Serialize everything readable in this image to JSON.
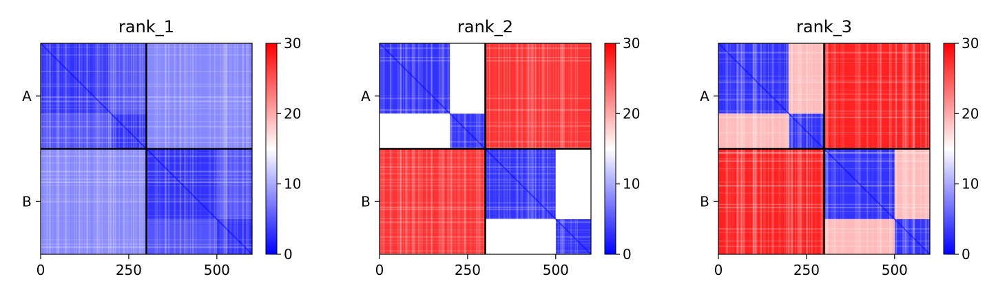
{
  "chart_data": [
    {
      "type": "heatmap",
      "title": "rank_1",
      "x_ticks": [
        0,
        250,
        500
      ],
      "xlim": [
        0,
        600
      ],
      "chain_boundary": 300,
      "y_tick_labels": [
        "A",
        "B"
      ],
      "colorbar": {
        "min": 0,
        "max": 30,
        "ticks": [
          0,
          10,
          20,
          30
        ],
        "colors": [
          "#0000ff",
          "#ffffff",
          "#ff0000"
        ]
      },
      "blocks": {
        "intra_A": 3,
        "intra_B": 3,
        "inter": 8,
        "subdomain_split": 200,
        "subdomain_inter": 5
      }
    },
    {
      "type": "heatmap",
      "title": "rank_2",
      "x_ticks": [
        0,
        250,
        500
      ],
      "xlim": [
        0,
        600
      ],
      "chain_boundary": 300,
      "y_tick_labels": [
        "A",
        "B"
      ],
      "colorbar": {
        "min": 0,
        "max": 30,
        "ticks": [
          0,
          10,
          20,
          30
        ],
        "colors": [
          "#0000ff",
          "#ffffff",
          "#ff0000"
        ]
      },
      "blocks": {
        "intra_A": 3,
        "intra_B": 3,
        "inter": 27,
        "subdomain_split": 200,
        "subdomain_inter": 15
      }
    },
    {
      "type": "heatmap",
      "title": "rank_3",
      "x_ticks": [
        0,
        250,
        500
      ],
      "xlim": [
        0,
        600
      ],
      "chain_boundary": 300,
      "y_tick_labels": [
        "A",
        "B"
      ],
      "colorbar": {
        "min": 0,
        "max": 30,
        "ticks": [
          0,
          10,
          20,
          30
        ],
        "colors": [
          "#0000ff",
          "#ffffff",
          "#ff0000"
        ]
      },
      "blocks": {
        "intra_A": 3,
        "intra_B": 3,
        "inter": 28,
        "subdomain_split": 200,
        "subdomain_inter": 19
      }
    }
  ]
}
